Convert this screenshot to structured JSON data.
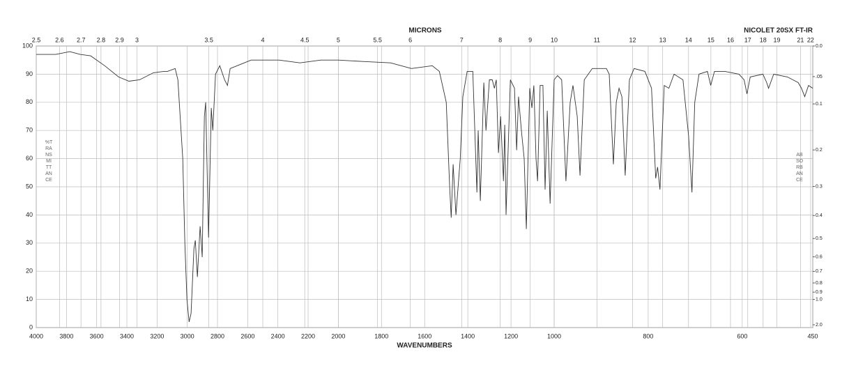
{
  "chart_data": {
    "type": "line",
    "title": "NICOLET 20SX FT-IR",
    "x2label": "MICRONS",
    "xlabel": "WAVENUMBERS",
    "ylabel": "%TRANSMITTANCE",
    "y2label": "ABSORBANCE",
    "xlim": [
      4000,
      450
    ],
    "xbreaks": [
      2000,
      1000
    ],
    "xticks": [
      4000,
      3800,
      3600,
      3400,
      3200,
      3000,
      2800,
      2600,
      2400,
      2200,
      2000,
      1800,
      1600,
      1400,
      1200,
      1000,
      800,
      600,
      450
    ],
    "x2ticks": [
      2.5,
      2.6,
      2.7,
      2.8,
      2.9,
      3,
      3.5,
      4,
      4.5,
      5,
      5.5,
      6,
      7,
      8,
      9,
      10,
      11,
      12,
      13,
      14,
      15,
      16,
      17,
      18,
      19,
      21,
      22
    ],
    "ylim": [
      0,
      100
    ],
    "yticks": [
      0,
      10,
      20,
      30,
      40,
      50,
      60,
      70,
      80,
      90,
      100
    ],
    "y2scale": "absorbance",
    "y2ticks": [
      {
        "value": 0,
        "label": "0.0"
      },
      {
        "value": 0.05,
        "label": ".05"
      },
      0.1,
      0.2,
      0.3,
      0.4,
      0.5,
      0.6,
      0.7,
      0.8,
      0.9,
      {
        "value": 1,
        "label": "1.0"
      },
      {
        "value": 2,
        "label": "2.0"
      }
    ],
    "grid": true,
    "x": [
      4000,
      3871,
      3778,
      3709,
      3640,
      3547,
      3455,
      3386,
      3316,
      3224,
      3155,
      3131,
      3080,
      3062,
      3030,
      3016,
      3002,
      2988,
      2975,
      2956,
      2947,
      2933,
      2915,
      2901,
      2887,
      2878,
      2859,
      2841,
      2831,
      2813,
      2785,
      2753,
      2734,
      2716,
      2647,
      2577,
      2393,
      2254,
      2115,
      2000,
      1887,
      1758,
      1661,
      1565,
      1532,
      1500,
      1484,
      1477,
      1468,
      1455,
      1435,
      1423,
      1403,
      1377,
      1358,
      1352,
      1342,
      1326,
      1316,
      1300,
      1287,
      1277,
      1268,
      1258,
      1248,
      1235,
      1229,
      1223,
      1203,
      1184,
      1174,
      1165,
      1152,
      1139,
      1129,
      1113,
      1103,
      1094,
      1084,
      1077,
      1065,
      1052,
      1042,
      1032,
      1019,
      1000,
      993,
      984,
      975,
      966,
      960,
      951,
      945,
      936,
      919,
      889,
      883,
      874,
      868,
      862,
      856,
      849,
      840,
      830,
      807,
      793,
      784,
      780,
      775,
      766,
      756,
      745,
      726,
      714,
      707,
      701,
      692,
      674,
      667,
      659,
      637,
      607,
      596,
      590,
      583,
      556,
      548,
      544,
      533,
      504,
      481,
      474,
      467,
      459,
      450
    ],
    "series": [
      {
        "color": "#333333",
        "values": [
          97,
          97,
          98,
          97,
          96.5,
          93,
          89,
          87.5,
          88,
          90.5,
          91,
          91,
          92,
          88,
          60,
          30,
          10,
          2,
          5,
          28,
          31,
          18,
          36,
          25,
          75,
          80,
          32,
          78,
          70,
          90,
          93,
          88,
          86,
          92,
          93.5,
          95,
          95,
          94,
          95,
          95,
          94.5,
          94,
          92,
          93,
          91,
          80,
          50,
          39,
          58,
          40,
          60,
          82,
          91,
          91,
          48,
          70,
          45,
          87,
          70,
          88,
          88,
          85,
          88,
          62,
          75,
          52,
          72,
          40,
          88,
          85,
          63,
          82,
          70,
          60,
          35,
          85,
          78,
          86,
          60,
          52,
          86,
          86,
          49,
          77,
          44,
          88,
          89.5,
          88,
          52,
          80,
          86,
          75,
          54,
          88,
          92,
          92,
          90,
          58,
          80,
          85,
          82,
          54,
          88,
          92,
          91,
          85,
          53,
          57,
          49,
          86,
          85,
          90,
          88,
          68,
          48,
          80,
          90,
          91,
          86,
          91,
          91,
          90,
          88,
          83,
          89,
          90,
          87,
          85,
          90,
          89,
          87,
          85,
          82,
          86,
          85
        ]
      }
    ]
  }
}
